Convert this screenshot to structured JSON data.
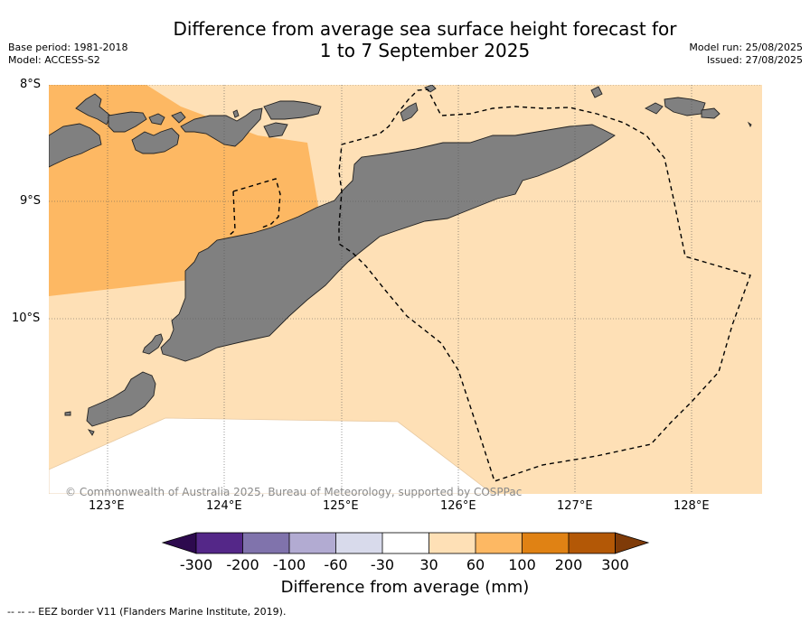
{
  "title": {
    "line1": "Difference from average sea surface height forecast for",
    "line2": "1 to 7 September 2025"
  },
  "meta_left": {
    "base_period": "Base period: 1981-2018",
    "model": "Model: ACCESS-S2"
  },
  "meta_right": {
    "model_run": "Model run: 25/08/2025",
    "issued": "Issued: 27/08/2025"
  },
  "axes": {
    "lat_labels": [
      "8°S",
      "9°S",
      "10°S"
    ],
    "lon_labels": [
      "123°E",
      "124°E",
      "125°E",
      "126°E",
      "127°E",
      "128°E"
    ]
  },
  "copyright": "© Commonwealth of Australia 2025, Bureau of Meteorology, supported by COSPPac",
  "colorbar": {
    "title": "Difference from average (mm)",
    "tick_labels": [
      "-300",
      "-200",
      "-100",
      "-60",
      "-30",
      "30",
      "60",
      "100",
      "200",
      "300"
    ],
    "colors": {
      "below_min": "#2d0a4e",
      "bin_-300_-200": "#542788",
      "bin_-200_-100": "#8073ac",
      "bin_-100_-60": "#b2abd2",
      "bin_-60_-30": "#d8daeb",
      "bin_-30_30": "#ffffff",
      "bin_30_60": "#fee0b6",
      "bin_60_100": "#fdb863",
      "bin_100_200": "#e08214",
      "bin_200_300": "#b35806",
      "above_max": "#7f3b08"
    }
  },
  "legend_footnote": "--  --  -- EEZ border V11 (Flanders Marine Institute, 2019).",
  "map_colors": {
    "land": "#808080",
    "ocean_30_60": "#fee0b6",
    "ocean_60_100": "#fdb863",
    "ocean_neutral": "#ffffff"
  }
}
